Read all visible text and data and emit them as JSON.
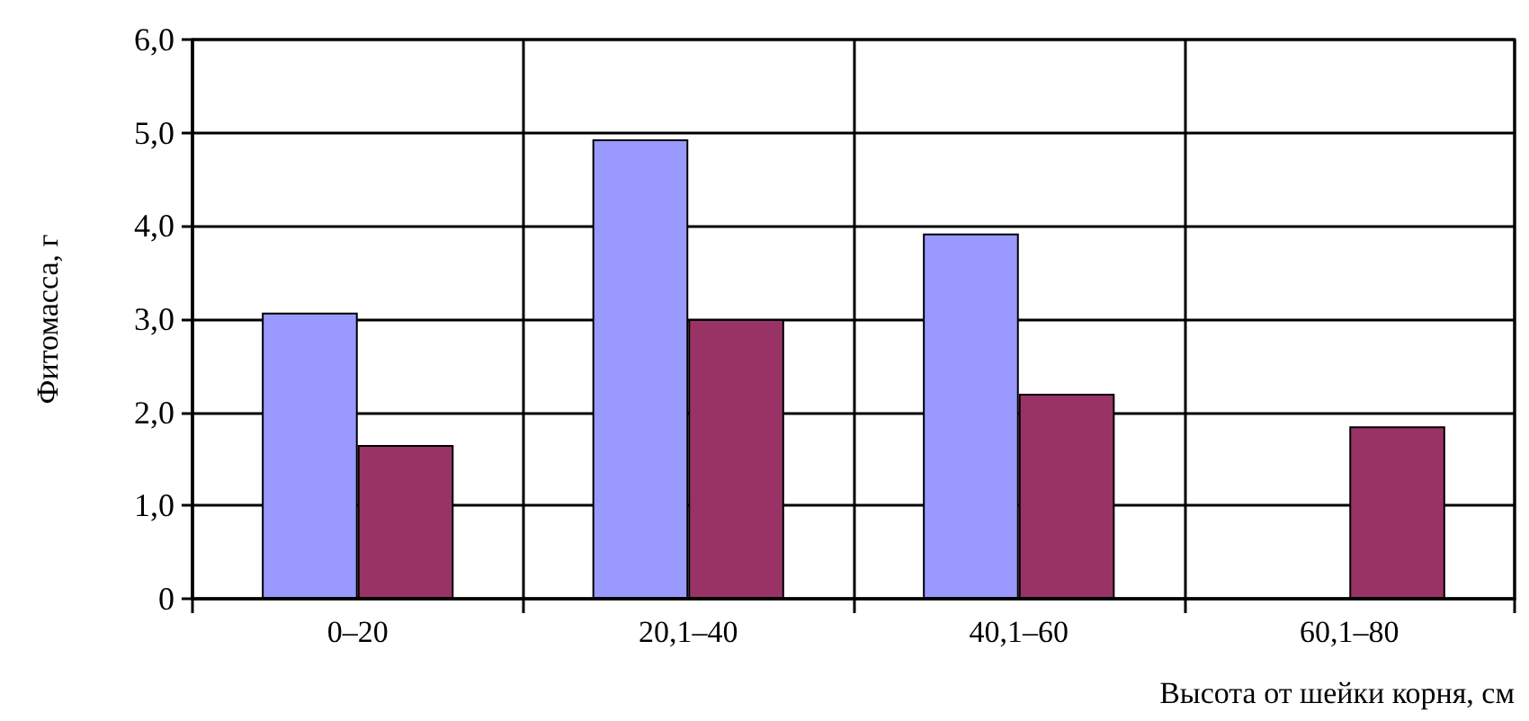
{
  "chart_data": {
    "type": "bar",
    "xlabel": "Высота от шейки корня, см",
    "ylabel": "Фитомасса, г",
    "categories": [
      "0–20",
      "20,1–40",
      "40,1–60",
      "60,1–80"
    ],
    "series": [
      {
        "color": "#9999ff",
        "values": [
          3.07,
          4.93,
          3.92,
          null
        ]
      },
      {
        "color": "#993366",
        "values": [
          1.65,
          3.0,
          2.2,
          1.85
        ]
      }
    ],
    "ylim": [
      0,
      6
    ],
    "yticks": [
      0,
      {
        "value": 1,
        "label": "1,0"
      },
      {
        "value": 2,
        "label": "2,0"
      },
      {
        "value": 3,
        "label": "3,0"
      },
      {
        "value": 4,
        "label": "4,0"
      },
      {
        "value": 5,
        "label": "5,0"
      },
      {
        "value": 6,
        "label": "6,0"
      }
    ],
    "grid": true
  }
}
